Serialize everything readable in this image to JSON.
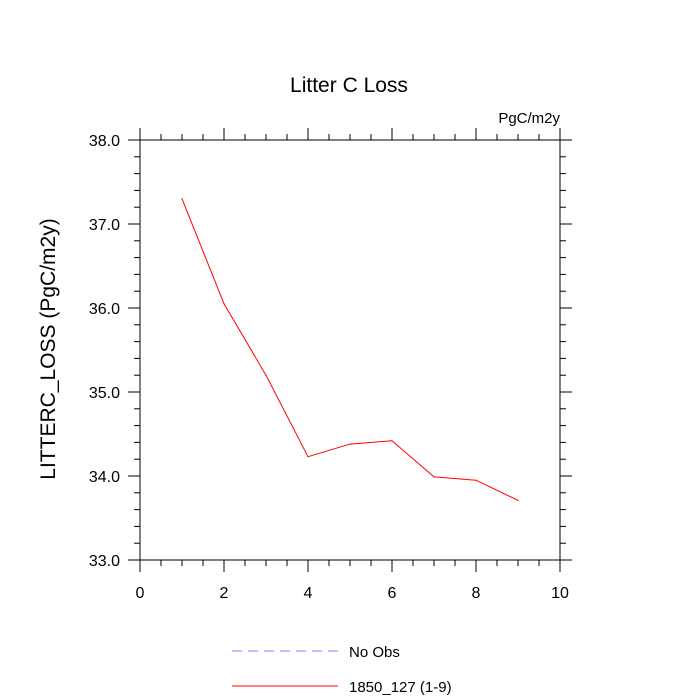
{
  "chart_data": {
    "type": "line",
    "title": "Litter C Loss",
    "units_label": "PgC/m2y",
    "ylabel": "LITTERC_LOSS  (PgC/m2y)",
    "xlabel": "",
    "xlim": [
      0,
      10
    ],
    "ylim": [
      33.0,
      38.0
    ],
    "x_ticks": [
      0,
      2,
      4,
      6,
      8,
      10
    ],
    "x_tick_labels": [
      "0",
      "2",
      "4",
      "6",
      "8",
      "10"
    ],
    "y_ticks": [
      33.0,
      34.0,
      35.0,
      36.0,
      37.0,
      38.0
    ],
    "y_tick_labels": [
      "33.0",
      "34.0",
      "35.0",
      "36.0",
      "37.0",
      "38.0"
    ],
    "grid": false,
    "legend_position": "bottom-center",
    "series": [
      {
        "name": "No Obs",
        "color": "#8080ff",
        "dash": "dashed",
        "x": [],
        "y": []
      },
      {
        "name": "1850_127 (1-9)",
        "color": "#ff0000",
        "dash": "solid",
        "x": [
          1,
          2,
          3,
          4,
          5,
          6,
          7,
          8,
          9
        ],
        "y": [
          37.3,
          36.05,
          35.2,
          34.23,
          34.38,
          34.42,
          33.99,
          33.95,
          33.71
        ]
      }
    ]
  }
}
